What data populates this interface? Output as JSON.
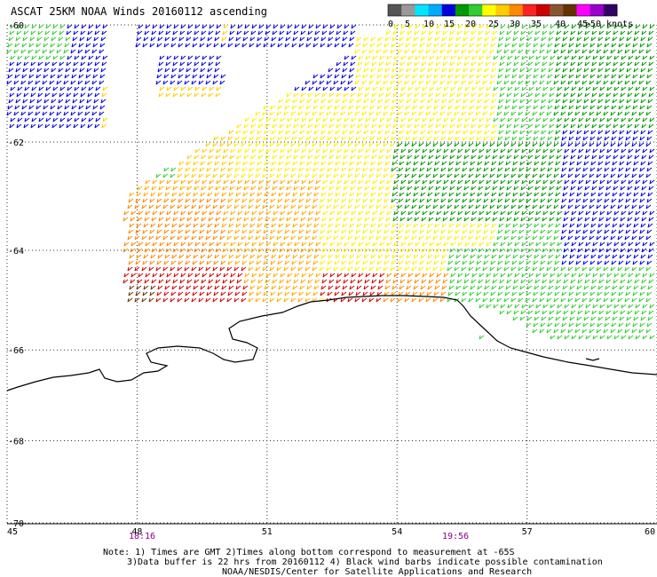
{
  "title": "ASCAT 25KM NOAA Winds 20160112 ascending",
  "lat_labels": [
    "-60",
    "-62",
    "-64",
    "-66",
    "-68",
    "-70"
  ],
  "lon_labels": [
    "45",
    "48",
    "51",
    "54",
    "57",
    "60"
  ],
  "pass_times": [
    "18:16",
    "19:56"
  ],
  "colors": {
    "scale": [
      "#555555",
      "#999999",
      "#00e5ff",
      "#00aaff",
      "#0000dd",
      "#009900",
      "#33cc33",
      "#ffff00",
      "#ffcc00",
      "#ff8800",
      "#ff2222",
      "#cc0000",
      "#885533",
      "#663300",
      "#ff00ff",
      "#9900cc",
      "#330066"
    ],
    "pass_time": "#880088",
    "coast": "#000000"
  },
  "scale_labels": [
    "0",
    "5",
    "10",
    "15",
    "20",
    "25",
    "30",
    "35",
    "40",
    "45",
    ">50 knots"
  ],
  "notes": [
    "Note: 1) Times are GMT 2)Times along bottom correspond to measurement at -65S",
    "3)Data buffer is 22 hrs from 20160112 4) Black wind barbs indicate possible contamination",
    "NOAA/NESDIS/Center for Satellite Applications and Research"
  ]
}
